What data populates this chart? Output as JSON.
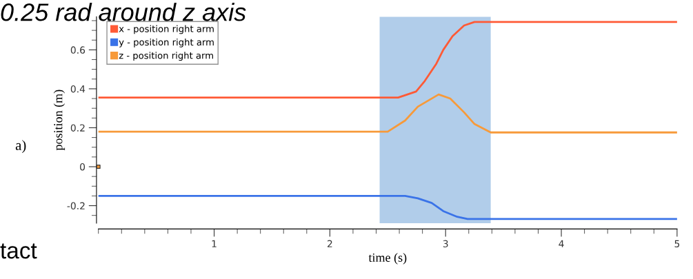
{
  "chart_data": {
    "type": "line",
    "xlabel": "time (s)",
    "ylabel": "position (m)",
    "xlim": [
      0,
      5
    ],
    "ylim": [
      -0.29,
      0.77
    ],
    "xticks": [
      1,
      2,
      3,
      4,
      5
    ],
    "yticks": [
      -0.2,
      0,
      0.2,
      0.4,
      0.6
    ],
    "grid": false,
    "legend": "top left",
    "marker": "none",
    "line_style": "solid",
    "series": [
      {
        "name": "x - position right arm",
        "color": "#ff5a36",
        "x": [
          0,
          2.59,
          2.745,
          2.82,
          2.92,
          2.98,
          3.06,
          3.16,
          3.25,
          5
        ],
        "values": [
          0.355,
          0.355,
          0.386,
          0.44,
          0.529,
          0.6,
          0.67,
          0.725,
          0.743,
          0.743
        ]
      },
      {
        "name": "y - position right arm",
        "color": "#3a73e8",
        "x": [
          0,
          2.65,
          2.76,
          2.88,
          2.98,
          3.1,
          3.19,
          5
        ],
        "values": [
          -0.15,
          -0.15,
          -0.162,
          -0.186,
          -0.228,
          -0.257,
          -0.268,
          -0.268
        ]
      },
      {
        "name": "z - position right arm",
        "color": "#f79a3a",
        "x": [
          0,
          2.5,
          2.65,
          2.76,
          2.94,
          3.04,
          3.16,
          3.25,
          3.39,
          5
        ],
        "values": [
          0.18,
          0.18,
          0.237,
          0.308,
          0.371,
          0.35,
          0.279,
          0.219,
          0.176,
          0.176
        ]
      },
      {
        "type": "scatter",
        "marker": "square",
        "color": "#f79a3a",
        "x": [
          0
        ],
        "values": [
          0
        ]
      }
    ],
    "bands": [
      {
        "axis": "x",
        "from": 2.43,
        "to": 3.39,
        "color": "#a9c8e8"
      }
    ],
    "annotations": [
      "0.25 rad around z axis",
      "a)",
      "tact"
    ]
  }
}
